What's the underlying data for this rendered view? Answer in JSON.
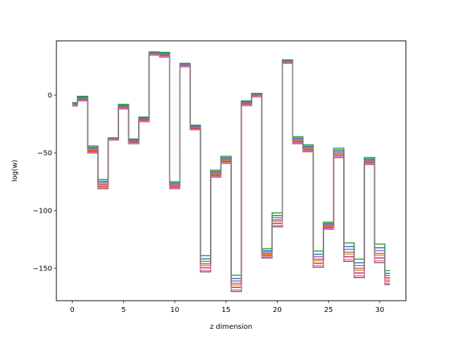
{
  "chart_data": {
    "type": "line",
    "drawstyle": "steps-mid",
    "xlabel": "z dimension",
    "ylabel": "log(w)",
    "xlim": [
      -1.55,
      32.55
    ],
    "ylim": [
      -178,
      47
    ],
    "xticks": [
      0,
      5,
      10,
      15,
      20,
      25,
      30
    ],
    "xtick_labels": [
      "0",
      "5",
      "10",
      "15",
      "20",
      "25",
      "30"
    ],
    "yticks": [
      -150,
      -100,
      -50,
      0
    ],
    "ytick_labels": [
      "−150",
      "−100",
      "−50",
      "0"
    ],
    "grid": false,
    "x": [
      0,
      1,
      2,
      3,
      4,
      5,
      6,
      7,
      8,
      9,
      10,
      11,
      12,
      13,
      14,
      15,
      16,
      17,
      18,
      19,
      20,
      21,
      22,
      23,
      24,
      25,
      26,
      27,
      28,
      29,
      30,
      31
    ],
    "base": [
      -8,
      -3,
      -47,
      -77,
      -38,
      -10,
      -40,
      -21,
      36,
      35,
      -78,
      26,
      -28,
      -146,
      -68,
      -56,
      -163,
      -7,
      0,
      -137,
      -108,
      29,
      -39,
      -46,
      -142,
      -113,
      -50,
      -136,
      -150,
      -57,
      -137,
      -158
    ],
    "spread": [
      1.5,
      2,
      3,
      4,
      1,
      2,
      2,
      2,
      1.5,
      2,
      3,
      1.5,
      2,
      7,
      3,
      3,
      7,
      2,
      1.5,
      4,
      6,
      1.5,
      3,
      3,
      7,
      3,
      4,
      8,
      8,
      3,
      8,
      6
    ],
    "series": [
      {
        "color": "#1f77b4",
        "offset": 0.6
      },
      {
        "color": "#ff7f0e",
        "offset": -0.2
      },
      {
        "color": "#2ca02c",
        "offset": 1.0
      },
      {
        "color": "#d62728",
        "offset": -0.5
      },
      {
        "color": "#9467bd",
        "offset": 0.3
      },
      {
        "color": "#8c564b",
        "offset": -1.0
      },
      {
        "color": "#e377c2",
        "offset": -0.8
      },
      {
        "color": "#7f7f7f",
        "offset": 0.0
      }
    ]
  }
}
